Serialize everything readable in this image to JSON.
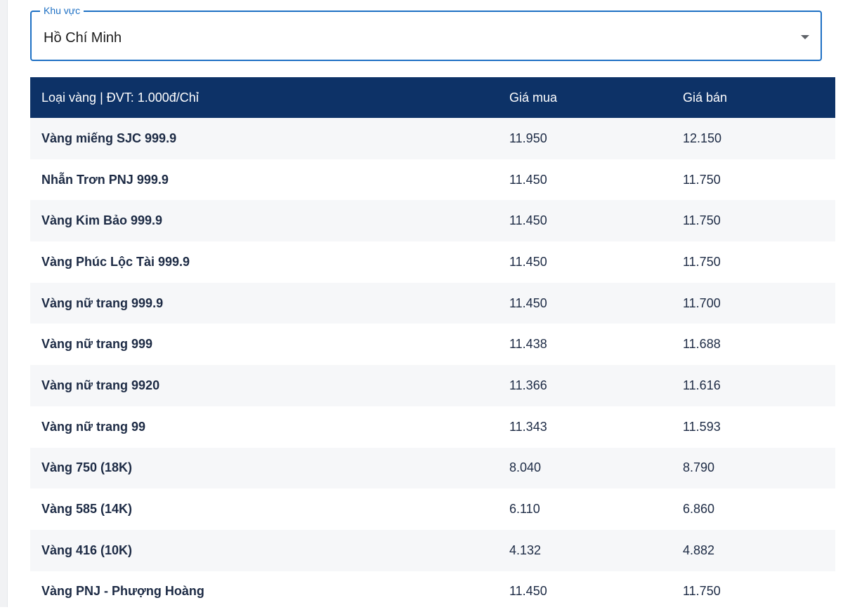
{
  "region": {
    "legend": "Khu vực",
    "value": "Hồ Chí Minh"
  },
  "table": {
    "headers": {
      "type": "Loại vàng | ĐVT: 1.000đ/Chỉ",
      "buy": "Giá mua",
      "sell": "Giá bán"
    },
    "rows": [
      {
        "name": "Vàng miếng SJC 999.9",
        "buy": "11.950",
        "sell": "12.150"
      },
      {
        "name": "Nhẫn Trơn PNJ 999.9",
        "buy": "11.450",
        "sell": "11.750"
      },
      {
        "name": "Vàng Kim Bảo 999.9",
        "buy": "11.450",
        "sell": "11.750"
      },
      {
        "name": "Vàng Phúc Lộc Tài 999.9",
        "buy": "11.450",
        "sell": "11.750"
      },
      {
        "name": "Vàng nữ trang 999.9",
        "buy": "11.450",
        "sell": "11.700"
      },
      {
        "name": "Vàng nữ trang 999",
        "buy": "11.438",
        "sell": "11.688"
      },
      {
        "name": "Vàng nữ trang 9920",
        "buy": "11.366",
        "sell": "11.616"
      },
      {
        "name": "Vàng nữ trang 99",
        "buy": "11.343",
        "sell": "11.593"
      },
      {
        "name": "Vàng 750 (18K)",
        "buy": "8.040",
        "sell": "8.790"
      },
      {
        "name": "Vàng 585 (14K)",
        "buy": "6.110",
        "sell": "6.860"
      },
      {
        "name": "Vàng 416 (10K)",
        "buy": "4.132",
        "sell": "4.882"
      },
      {
        "name": "Vàng PNJ - Phượng Hoàng",
        "buy": "11.450",
        "sell": "11.750"
      }
    ]
  },
  "colors": {
    "header_bg": "#0d3267",
    "accent": "#1e70c4",
    "row_alt": "#f6f7f9",
    "name_text": "#0d2a55"
  }
}
